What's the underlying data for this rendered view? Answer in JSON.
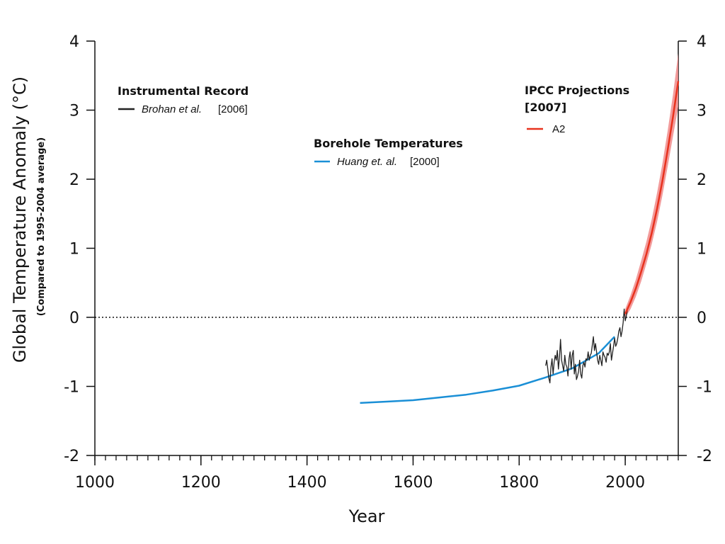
{
  "chart_data": {
    "type": "line",
    "xlabel": "Year",
    "ylabel": "Global Temperature Anomaly (°C)",
    "ylabel_sub": "(Compared to 1995-2004 average)",
    "xlim": [
      1000,
      2100
    ],
    "ylim": [
      -2,
      4
    ],
    "x_ticks": [
      "1000",
      "1200",
      "1400",
      "1600",
      "1800",
      "2000"
    ],
    "x_tick_values": [
      1000,
      1200,
      1400,
      1600,
      1800,
      2000
    ],
    "y_ticks": [
      "-2",
      "-1",
      "0",
      "1",
      "2",
      "3",
      "4"
    ],
    "y_tick_values": [
      -2,
      -1,
      0,
      1,
      2,
      3,
      4
    ],
    "reference_line": {
      "y": 0,
      "style": "dotted"
    },
    "series": [
      {
        "name": "Borehole Temperatures",
        "source_author": "Huang et. al.",
        "source_year": "[2000]",
        "color": "#1a8fd6",
        "x": [
          1500,
          1550,
          1600,
          1650,
          1700,
          1750,
          1800,
          1850,
          1900,
          1950,
          1980
        ],
        "y": [
          -1.24,
          -1.22,
          -1.2,
          -1.16,
          -1.12,
          -1.06,
          -0.99,
          -0.87,
          -0.74,
          -0.52,
          -0.28
        ]
      },
      {
        "name": "Instrumental Record",
        "source_author": "Brohan et al.",
        "source_year": "[2006]",
        "color": "#222222",
        "x": [
          1850,
          1852,
          1854,
          1856,
          1858,
          1860,
          1862,
          1864,
          1866,
          1868,
          1870,
          1872,
          1874,
          1876,
          1878,
          1880,
          1882,
          1884,
          1886,
          1888,
          1890,
          1892,
          1894,
          1896,
          1898,
          1900,
          1902,
          1904,
          1906,
          1908,
          1910,
          1912,
          1914,
          1916,
          1918,
          1920,
          1922,
          1924,
          1926,
          1928,
          1930,
          1932,
          1934,
          1936,
          1938,
          1940,
          1942,
          1944,
          1946,
          1948,
          1950,
          1952,
          1954,
          1956,
          1958,
          1960,
          1962,
          1964,
          1966,
          1968,
          1970,
          1972,
          1974,
          1976,
          1978,
          1980,
          1982,
          1984,
          1986,
          1988,
          1990,
          1992,
          1994,
          1996,
          1998,
          2000,
          2002,
          2004
        ],
        "y": [
          -0.7,
          -0.62,
          -0.75,
          -0.88,
          -0.95,
          -0.72,
          -0.6,
          -0.82,
          -0.65,
          -0.55,
          -0.62,
          -0.48,
          -0.75,
          -0.58,
          -0.32,
          -0.62,
          -0.7,
          -0.78,
          -0.55,
          -0.68,
          -0.72,
          -0.85,
          -0.6,
          -0.5,
          -0.75,
          -0.55,
          -0.48,
          -0.82,
          -0.68,
          -0.9,
          -0.85,
          -0.78,
          -0.62,
          -0.82,
          -0.88,
          -0.7,
          -0.65,
          -0.72,
          -0.6,
          -0.62,
          -0.5,
          -0.62,
          -0.55,
          -0.52,
          -0.4,
          -0.28,
          -0.48,
          -0.38,
          -0.5,
          -0.62,
          -0.68,
          -0.55,
          -0.62,
          -0.7,
          -0.5,
          -0.55,
          -0.58,
          -0.65,
          -0.52,
          -0.55,
          -0.5,
          -0.38,
          -0.62,
          -0.52,
          -0.42,
          -0.3,
          -0.42,
          -0.38,
          -0.3,
          -0.2,
          -0.15,
          -0.28,
          -0.2,
          -0.08,
          0.12,
          -0.05,
          0.02,
          0.1
        ]
      },
      {
        "name": "IPCC Projections [2007]",
        "legend_entry": "A2",
        "color": "#e8321e",
        "band_color": "#f08a8a",
        "x": [
          2000,
          2010,
          2020,
          2030,
          2040,
          2050,
          2060,
          2070,
          2080,
          2090,
          2100
        ],
        "y": [
          0.05,
          0.22,
          0.42,
          0.66,
          0.92,
          1.22,
          1.57,
          1.97,
          2.42,
          2.9,
          3.42
        ],
        "band_low": [
          0.0,
          0.12,
          0.3,
          0.52,
          0.78,
          1.06,
          1.38,
          1.76,
          2.18,
          2.62,
          3.05
        ],
        "band_high": [
          0.12,
          0.32,
          0.55,
          0.82,
          1.1,
          1.42,
          1.8,
          2.22,
          2.7,
          3.22,
          3.82
        ]
      }
    ],
    "legend": {
      "instrumental_title": "Instrumental Record",
      "instrumental_author": "Brohan et al.",
      "instrumental_year": "[2006]",
      "borehole_title": "Borehole Temperatures",
      "borehole_author": "Huang et. al.",
      "borehole_year": "[2000]",
      "ipcc_title_line1": "IPCC  Projections",
      "ipcc_title_line2": "[2007]",
      "ipcc_entry": "A2"
    }
  }
}
